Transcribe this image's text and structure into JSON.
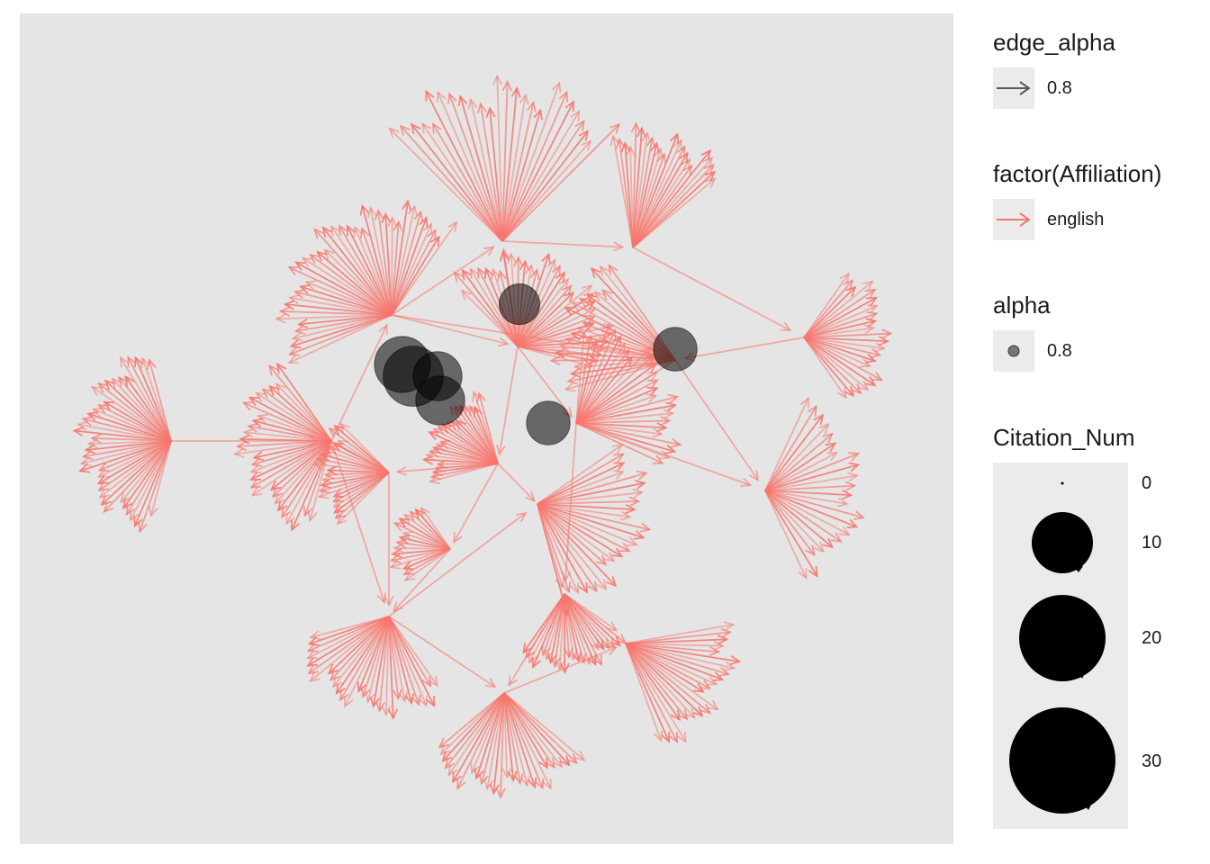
{
  "legend": {
    "edge_alpha": {
      "title": "edge_alpha",
      "label": "0.8",
      "color": "#595959"
    },
    "affiliation": {
      "title": "factor(Affiliation)",
      "label": "english",
      "color": "#f8766d"
    },
    "alpha": {
      "title": "alpha",
      "label": "0.8",
      "color": "#595959"
    },
    "citation": {
      "title": "Citation_Num",
      "entries": [
        {
          "label": "0",
          "value": 0
        },
        {
          "label": "10",
          "value": 10
        },
        {
          "label": "20",
          "value": 20
        },
        {
          "label": "30",
          "value": 30
        }
      ]
    }
  },
  "network": {
    "edge_color": "#f8766d",
    "node_color": "#000000",
    "hubs": [
      {
        "id": "h1",
        "label": "",
        "fan_count": 38
      },
      {
        "id": "h2",
        "label": "",
        "fan_count": 40
      },
      {
        "id": "h3",
        "label": "",
        "fan_count": 26
      },
      {
        "id": "h4",
        "label": "",
        "fan_count": 22
      },
      {
        "id": "h5",
        "label": "",
        "fan_count": 22
      },
      {
        "id": "h6",
        "label": "",
        "fan_count": 30
      },
      {
        "id": "h7",
        "label": "",
        "fan_count": 34
      },
      {
        "id": "h8",
        "label": "",
        "fan_count": 22
      },
      {
        "id": "h9",
        "label": "",
        "fan_count": 22
      },
      {
        "id": "h10",
        "label": "",
        "fan_count": 26
      },
      {
        "id": "h11",
        "label": "",
        "fan_count": 24
      },
      {
        "id": "h12",
        "label": "",
        "fan_count": 26
      },
      {
        "id": "h13",
        "label": "",
        "fan_count": 28
      },
      {
        "id": "h14",
        "label": "",
        "fan_count": 24
      },
      {
        "id": "h15",
        "label": "",
        "fan_count": 26
      },
      {
        "id": "h16",
        "label": "",
        "fan_count": 22
      },
      {
        "id": "h17",
        "label": "",
        "fan_count": 20
      },
      {
        "id": "h18",
        "label": "",
        "fan_count": 16
      }
    ],
    "cited_nodes": [
      {
        "id": "n1",
        "citation_num": 12
      },
      {
        "id": "n2",
        "citation_num": 14
      },
      {
        "id": "n3",
        "citation_num": 9
      },
      {
        "id": "n4",
        "citation_num": 9
      },
      {
        "id": "n5",
        "citation_num": 6
      },
      {
        "id": "n6",
        "citation_num": 7
      },
      {
        "id": "n7",
        "citation_num": 7
      }
    ]
  }
}
